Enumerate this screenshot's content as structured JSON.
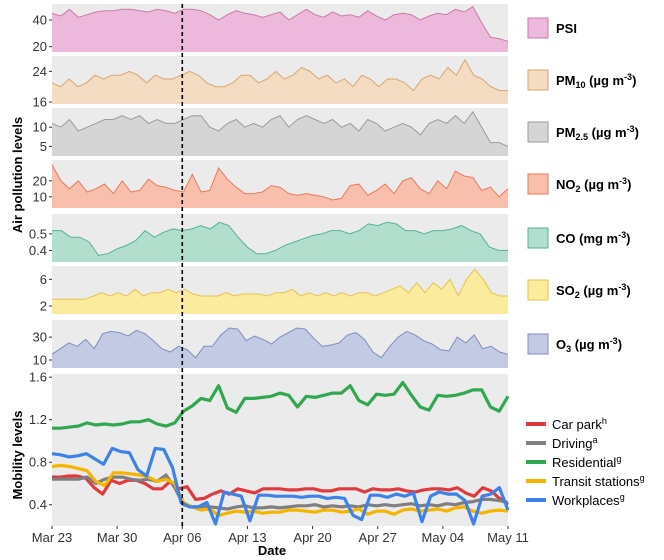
{
  "chart_data": {
    "type": "area",
    "ylabel_top": "Air pollution levels",
    "ylabel_bottom": "Mobility levels",
    "xlabel": "Date",
    "x_ticks": [
      "Mar 23",
      "Mar 30",
      "Apr 06",
      "Apr 13",
      "Apr 20",
      "Apr 27",
      "May 04",
      "May 11"
    ],
    "x_start": "2020-03-23",
    "x_end": "2020-05-11",
    "vline_date": "2020-04-06",
    "panels": [
      {
        "name": "PSI",
        "legend": {
          "main": "PSI",
          "sub": "",
          "unit": ""
        },
        "color": "#cc79a7",
        "fill": "#ecb8dc",
        "ylim": [
          16,
          52
        ],
        "yticks": [
          20,
          40
        ],
        "ytick_labels": [
          "20",
          "40"
        ],
        "values": [
          45,
          43,
          48,
          42,
          44,
          46,
          47,
          47,
          48,
          48,
          47,
          46,
          48,
          47,
          45,
          48,
          48,
          47,
          44,
          40,
          44,
          47,
          45,
          44,
          42,
          44,
          46,
          40,
          44,
          48,
          44,
          42,
          46,
          43,
          44,
          42,
          47,
          43,
          40,
          44,
          45,
          44,
          40,
          43,
          45,
          44,
          48,
          46,
          50,
          38,
          27,
          26,
          24
        ]
      },
      {
        "name": "PM10",
        "legend": {
          "main": "PM",
          "sub": "10",
          "unit": " (µg m",
          "unit_sup": "-3",
          "unit_end": ")"
        },
        "color": "#d9a66b",
        "fill": "#f3dcc2",
        "ylim": [
          15.5,
          28
        ],
        "yticks": [
          16,
          24
        ],
        "ytick_labels": [
          "16",
          "24"
        ],
        "values": [
          21,
          20,
          22,
          20,
          21,
          23,
          22,
          23,
          23,
          24,
          23,
          21,
          23,
          22,
          22,
          23,
          24,
          23,
          21,
          20,
          20,
          21,
          23,
          23,
          21,
          22,
          24,
          22,
          23,
          25,
          24,
          22,
          23,
          21,
          22,
          20,
          23,
          22,
          20,
          22,
          22,
          21,
          19,
          22,
          23,
          22,
          25,
          23,
          27,
          23,
          22,
          20,
          19,
          19
        ]
      },
      {
        "name": "PM2.5",
        "legend": {
          "main": "PM",
          "sub": "2.5",
          "unit": " (µg m",
          "unit_sup": "-3",
          "unit_end": ")"
        },
        "color": "#9b9b9b",
        "fill": "#d5d5d5",
        "ylim": [
          2.5,
          15
        ],
        "yticks": [
          5,
          10
        ],
        "ytick_labels": [
          "5",
          "10"
        ],
        "values": [
          11,
          10,
          12,
          9,
          10,
          11,
          12,
          12,
          13,
          12,
          13,
          11,
          12,
          11,
          11,
          12,
          13,
          13,
          10,
          9,
          11,
          12,
          10,
          11,
          10,
          12,
          13,
          10,
          12,
          13,
          12,
          11,
          12,
          10,
          11,
          9,
          12,
          11,
          9,
          10,
          11,
          10,
          8,
          11,
          12,
          11,
          13,
          11,
          14,
          10,
          6,
          6,
          5
        ]
      },
      {
        "name": "NO2",
        "legend": {
          "main": "NO",
          "sub": "2",
          "unit": " (µg m",
          "unit_sup": "-3",
          "unit_end": ")"
        },
        "color": "#e8795a",
        "fill": "#f8c0ac",
        "ylim": [
          3,
          33
        ],
        "yticks": [
          10,
          20
        ],
        "ytick_labels": [
          "10",
          "20"
        ],
        "values": [
          30,
          20,
          15,
          20,
          13,
          15,
          18,
          12,
          20,
          13,
          14,
          21,
          17,
          16,
          14,
          13,
          24,
          13,
          14,
          28,
          21,
          16,
          12,
          12,
          13,
          17,
          16,
          12,
          11,
          12,
          11,
          10,
          8,
          9,
          17,
          18,
          11,
          14,
          18,
          12,
          20,
          22,
          15,
          12,
          20,
          15,
          26,
          23,
          22,
          14,
          16,
          10,
          15
        ]
      },
      {
        "name": "CO",
        "legend": {
          "main": "CO",
          "sub": "",
          "unit": " (mg m",
          "unit_sup": "-3",
          "unit_end": ")"
        },
        "color": "#55b397",
        "fill": "#b1decd",
        "ylim": [
          0.33,
          0.62
        ],
        "yticks": [
          0.4,
          0.5
        ],
        "ytick_labels": [
          "0.4",
          "0.5"
        ],
        "values": [
          0.52,
          0.52,
          0.48,
          0.48,
          0.45,
          0.37,
          0.38,
          0.41,
          0.43,
          0.46,
          0.52,
          0.48,
          0.51,
          0.53,
          0.52,
          0.53,
          0.55,
          0.53,
          0.57,
          0.55,
          0.48,
          0.42,
          0.38,
          0.38,
          0.4,
          0.43,
          0.45,
          0.47,
          0.49,
          0.5,
          0.52,
          0.52,
          0.5,
          0.52,
          0.56,
          0.55,
          0.57,
          0.56,
          0.52,
          0.52,
          0.5,
          0.52,
          0.52,
          0.53,
          0.55,
          0.52,
          0.5,
          0.42,
          0.4,
          0.4
        ]
      },
      {
        "name": "SO2",
        "legend": {
          "main": "SO",
          "sub": "2",
          "unit": " (µg m",
          "unit_sup": "-3",
          "unit_end": ")"
        },
        "color": "#e5c34f",
        "fill": "#fbeb9c",
        "ylim": [
          0.8,
          8
        ],
        "yticks": [
          2,
          6
        ],
        "ytick_labels": [
          "2",
          "6"
        ],
        "values": [
          3,
          3,
          3,
          3,
          3,
          3.5,
          4,
          3.5,
          4,
          3.5,
          4.5,
          3.5,
          4,
          4,
          4.5,
          4,
          4.5,
          3.8,
          3.5,
          3.5,
          3.5,
          4,
          3.5,
          3.8,
          3.8,
          3.8,
          3.5,
          4,
          4,
          4.5,
          3.5,
          4,
          3.5,
          4,
          3.5,
          4,
          3.5,
          4,
          4,
          3.5,
          4,
          4.5,
          5,
          4,
          5.5,
          4,
          5.5,
          4.5,
          6,
          3.5,
          6,
          7.5,
          6,
          4,
          3.5,
          3.5
        ]
      },
      {
        "name": "O3",
        "legend": {
          "main": "O",
          "sub": "3",
          "unit": " (µg m",
          "unit_sup": "-3",
          "unit_end": ")"
        },
        "color": "#7d8fbd",
        "fill": "#c2cbe3",
        "ylim": [
          3,
          45
        ],
        "yticks": [
          10,
          30
        ],
        "ytick_labels": [
          "10",
          "30"
        ],
        "values": [
          15,
          20,
          25,
          22,
          28,
          20,
          33,
          35,
          34,
          31,
          36,
          33,
          27,
          20,
          17,
          22,
          19,
          12,
          22,
          22,
          32,
          38,
          37,
          27,
          31,
          28,
          24,
          30,
          34,
          38,
          37,
          29,
          22,
          23,
          25,
          32,
          34,
          28,
          17,
          12,
          22,
          30,
          35,
          32,
          27,
          24,
          19,
          18,
          30,
          25,
          32,
          20,
          22,
          17,
          15
        ]
      }
    ],
    "mobility": {
      "ylim": [
        0.2,
        1.63
      ],
      "yticks": [
        0.4,
        0.8,
        1.2,
        1.6
      ],
      "ytick_labels": [
        "0.4",
        "0.8",
        "1.2",
        "1.6"
      ],
      "series": [
        {
          "name": "Car park",
          "sup": "h",
          "color": "#e03a3e",
          "values": [
            0.66,
            0.66,
            0.67,
            0.67,
            0.65,
            0.56,
            0.5,
            0.63,
            0.6,
            0.63,
            0.63,
            0.6,
            0.55,
            0.55,
            0.62,
            0.55,
            0.57,
            0.45,
            0.46,
            0.5,
            0.53,
            0.5,
            0.55,
            0.53,
            0.51,
            0.55,
            0.55,
            0.55,
            0.54,
            0.54,
            0.55,
            0.55,
            0.53,
            0.53,
            0.55,
            0.55,
            0.55,
            0.52,
            0.55,
            0.54,
            0.54,
            0.55,
            0.53,
            0.52,
            0.54,
            0.55,
            0.55,
            0.54,
            0.56,
            0.51,
            0.48,
            0.56,
            0.53,
            0.46,
            0.4
          ]
        },
        {
          "name": "Driving",
          "sup": "a",
          "color": "#7f7f7f",
          "values": [
            0.64,
            0.64,
            0.64,
            0.64,
            0.66,
            0.6,
            0.64,
            0.66,
            0.66,
            0.64,
            0.63,
            0.64,
            0.62,
            0.68,
            0.56,
            0.4,
            0.38,
            0.38,
            0.38,
            0.37,
            0.36,
            0.38,
            0.39,
            0.37,
            0.37,
            0.38,
            0.37,
            0.38,
            0.39,
            0.39,
            0.4,
            0.38,
            0.39,
            0.38,
            0.39,
            0.38,
            0.4,
            0.39,
            0.4,
            0.39,
            0.4,
            0.41,
            0.39,
            0.4,
            0.39,
            0.41,
            0.4,
            0.42,
            0.43,
            0.45,
            0.45,
            0.44,
            0.42
          ]
        },
        {
          "name": "Residential",
          "sup": "g",
          "color": "#2fa84f",
          "values": [
            1.12,
            1.12,
            1.13,
            1.14,
            1.17,
            1.15,
            1.16,
            1.15,
            1.16,
            1.18,
            1.18,
            1.2,
            1.16,
            1.14,
            1.17,
            1.28,
            1.33,
            1.4,
            1.38,
            1.52,
            1.31,
            1.27,
            1.4,
            1.4,
            1.41,
            1.42,
            1.45,
            1.43,
            1.32,
            1.42,
            1.41,
            1.43,
            1.45,
            1.45,
            1.52,
            1.38,
            1.34,
            1.44,
            1.43,
            1.44,
            1.55,
            1.43,
            1.32,
            1.29,
            1.43,
            1.42,
            1.43,
            1.45,
            1.48,
            1.48,
            1.32,
            1.28,
            1.42
          ]
        },
        {
          "name": "Transit stations",
          "sup": "g",
          "color": "#f5b400",
          "values": [
            0.76,
            0.77,
            0.76,
            0.74,
            0.72,
            0.62,
            0.58,
            0.7,
            0.7,
            0.69,
            0.68,
            0.66,
            0.62,
            0.64,
            0.6,
            0.42,
            0.38,
            0.35,
            0.36,
            0.3,
            0.32,
            0.34,
            0.33,
            0.34,
            0.32,
            0.33,
            0.33,
            0.35,
            0.35,
            0.34,
            0.33,
            0.35,
            0.35,
            0.33,
            0.34,
            0.36,
            0.31,
            0.34,
            0.34,
            0.31,
            0.35,
            0.36,
            0.34,
            0.35,
            0.36,
            0.34,
            0.37,
            0.38,
            0.34,
            0.32,
            0.34,
            0.35,
            0.34
          ]
        },
        {
          "name": "Workplaces",
          "sup": "g",
          "color": "#3d82e6",
          "values": [
            0.88,
            0.87,
            0.85,
            0.86,
            0.88,
            0.83,
            0.78,
            0.93,
            0.9,
            0.89,
            0.73,
            0.67,
            0.93,
            0.92,
            0.75,
            0.42,
            0.38,
            0.38,
            0.42,
            0.22,
            0.52,
            0.5,
            0.48,
            0.25,
            0.49,
            0.49,
            0.48,
            0.48,
            0.48,
            0.47,
            0.48,
            0.48,
            0.46,
            0.47,
            0.46,
            0.3,
            0.26,
            0.49,
            0.49,
            0.47,
            0.5,
            0.48,
            0.51,
            0.24,
            0.48,
            0.52,
            0.5,
            0.5,
            0.44,
            0.22,
            0.48,
            0.5,
            0.56,
            0.35
          ]
        }
      ]
    }
  }
}
